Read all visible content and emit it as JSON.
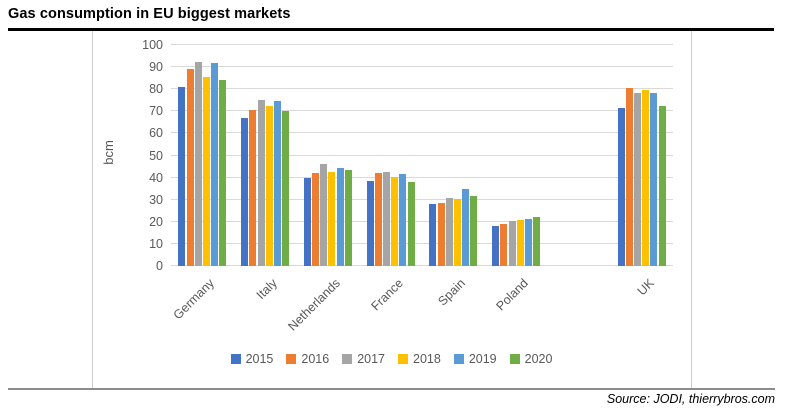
{
  "page": {
    "title": "Gas consumption in EU biggest markets",
    "source": "Source: JODI, thierrybros.com"
  },
  "chart_data": {
    "type": "bar",
    "title": "Gas consumption in EU biggest markets",
    "xlabel": "",
    "ylabel": "bcm",
    "ylim": [
      0,
      100
    ],
    "ytick_step": 10,
    "grid": "horizontal",
    "gridline_color": "#d9d9d9",
    "legend_position": "bottom",
    "gap_slot_before_last_category": true,
    "categories": [
      "Germany",
      "Italy",
      "Netherlands",
      "France",
      "Spain",
      "Poland",
      "UK"
    ],
    "series": [
      {
        "name": "2015",
        "color": "#4472C4",
        "values": [
          81,
          67,
          40,
          38.5,
          28,
          18,
          71.5
        ]
      },
      {
        "name": "2016",
        "color": "#ED7D31",
        "values": [
          89,
          70.5,
          42,
          42,
          28.5,
          19,
          80.5
        ]
      },
      {
        "name": "2017",
        "color": "#A5A5A5",
        "values": [
          92.5,
          75,
          46,
          42.5,
          31,
          20.5,
          78.5
        ]
      },
      {
        "name": "2018",
        "color": "#FFC000",
        "values": [
          85.5,
          72.5,
          42.5,
          40.5,
          30.5,
          21,
          79.5
        ]
      },
      {
        "name": "2019",
        "color": "#5B9BD5",
        "values": [
          92,
          74.5,
          44.5,
          41.5,
          35,
          21.5,
          78.5
        ]
      },
      {
        "name": "2020",
        "color": "#70AD47",
        "values": [
          84,
          70,
          43.5,
          38,
          31.5,
          22,
          72.5
        ]
      }
    ]
  }
}
